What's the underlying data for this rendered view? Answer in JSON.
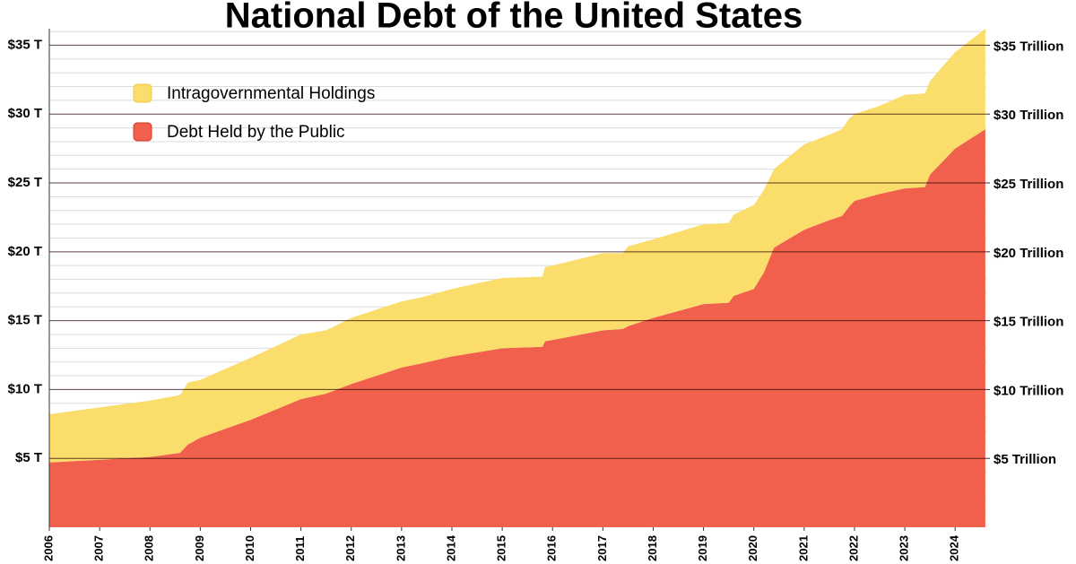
{
  "chart_data": {
    "type": "stacked_area",
    "title": "National Debt of the United States",
    "x": [
      2006,
      2007,
      2008,
      2008.6,
      2008.75,
      2009,
      2010,
      2011,
      2011.5,
      2012,
      2013,
      2013.4,
      2014,
      2015,
      2015.8,
      2015.85,
      2016,
      2017,
      2017.4,
      2017.5,
      2018,
      2019,
      2019.5,
      2019.6,
      2020,
      2020.2,
      2020.4,
      2021,
      2021.5,
      2021.75,
      2021.9,
      2022,
      2022.5,
      2023,
      2023.4,
      2023.5,
      2024,
      2024.6
    ],
    "series": [
      {
        "name": "Debt Held by the Public",
        "color": "#f0604d",
        "values": [
          4.7,
          4.9,
          5.1,
          5.4,
          6.0,
          6.5,
          7.8,
          9.3,
          9.7,
          10.4,
          11.6,
          11.9,
          12.4,
          13.0,
          13.1,
          13.5,
          13.6,
          14.3,
          14.4,
          14.6,
          15.2,
          16.2,
          16.3,
          16.8,
          17.3,
          18.5,
          20.3,
          21.6,
          22.3,
          22.6,
          23.3,
          23.7,
          24.2,
          24.6,
          24.7,
          25.6,
          27.5,
          28.9
        ]
      },
      {
        "name": "Intragovernmental Holdings",
        "color": "#fbdd6b",
        "values": [
          3.5,
          3.8,
          4.1,
          4.2,
          4.5,
          4.2,
          4.5,
          4.7,
          4.6,
          4.8,
          4.8,
          4.8,
          4.9,
          5.1,
          5.1,
          5.4,
          5.4,
          5.6,
          5.5,
          5.8,
          5.7,
          5.8,
          5.8,
          5.9,
          6.1,
          6.0,
          5.7,
          6.2,
          6.2,
          6.3,
          6.4,
          6.3,
          6.4,
          6.8,
          6.8,
          6.8,
          7.0,
          7.3
        ]
      }
    ],
    "xlim": [
      2006,
      2024.62
    ],
    "xticks": [
      2006,
      2007,
      2008,
      2009,
      2010,
      2011,
      2012,
      2013,
      2014,
      2015,
      2016,
      2017,
      2018,
      2019,
      2020,
      2021,
      2022,
      2023,
      2024
    ],
    "ylim": [
      0,
      36.2
    ],
    "yticks": [
      {
        "value": 5,
        "label": "$5 T"
      },
      {
        "value": 10,
        "label": "$10 T"
      },
      {
        "value": 15,
        "label": "$15 T"
      },
      {
        "value": 20,
        "label": "$20 T"
      },
      {
        "value": 25,
        "label": "$25 T"
      },
      {
        "value": 30,
        "label": "$30 T"
      },
      {
        "value": 35,
        "label": "$35 T"
      }
    ],
    "y2lim": [
      0,
      36.2
    ],
    "y2ticks": [
      {
        "value": 5,
        "label": "$5 Trillion"
      },
      {
        "value": 10,
        "label": "$10 Trillion"
      },
      {
        "value": 15,
        "label": "$15 Trillion"
      },
      {
        "value": 20,
        "label": "$20 Trillion"
      },
      {
        "value": 25,
        "label": "$25 Trillion"
      },
      {
        "value": 30,
        "label": "$30 Trillion"
      },
      {
        "value": 35,
        "label": "$35 Trillion"
      }
    ],
    "minor_yticks": [
      1,
      2,
      3,
      4,
      6,
      7,
      8,
      9,
      11,
      12,
      13,
      14,
      16,
      17,
      18,
      19,
      21,
      22,
      23,
      24,
      26,
      27,
      28,
      29,
      31,
      32,
      33,
      34,
      36
    ],
    "grid": true,
    "legend": "upper left"
  }
}
